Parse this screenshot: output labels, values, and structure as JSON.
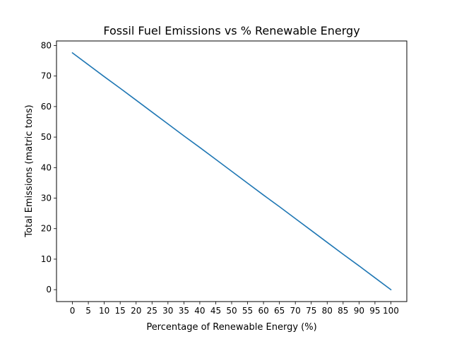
{
  "chart_data": {
    "type": "line",
    "title": "Fossil Fuel Emissions vs % Renewable Energy",
    "xlabel": "Percentage of Renewable Energy (%)",
    "ylabel": "Total Emissions (matric tons)",
    "x_ticks": [
      0,
      5,
      10,
      15,
      20,
      25,
      30,
      35,
      40,
      45,
      50,
      55,
      60,
      65,
      70,
      75,
      80,
      85,
      90,
      95,
      100
    ],
    "y_ticks": [
      0,
      10,
      20,
      30,
      40,
      50,
      60,
      70,
      80
    ],
    "xlim": [
      -5,
      105
    ],
    "ylim": [
      -3.9,
      81.5
    ],
    "grid": false,
    "series": [
      {
        "color": "#1f77b4",
        "x": [
          0,
          5,
          10,
          15,
          20,
          25,
          30,
          35,
          40,
          45,
          50,
          55,
          60,
          65,
          70,
          75,
          80,
          85,
          90,
          95,
          100
        ],
        "y": [
          77.6,
          73.7,
          69.8,
          66.0,
          62.1,
          58.2,
          54.3,
          50.4,
          46.6,
          42.7,
          38.8,
          34.9,
          31.0,
          27.2,
          23.3,
          19.4,
          15.5,
          11.6,
          7.8,
          3.9,
          0
        ]
      }
    ]
  }
}
